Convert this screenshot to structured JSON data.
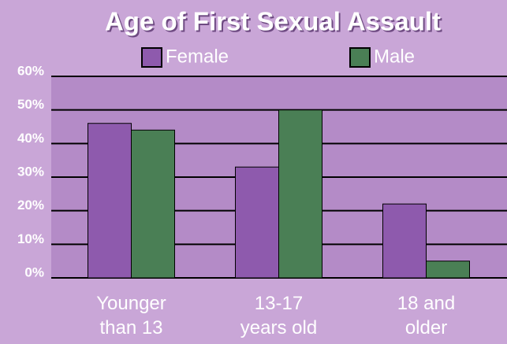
{
  "chart_data": {
    "type": "bar",
    "title": "Age of First Sexual Assault",
    "categories": [
      "Younger than 13",
      "13-17 years old",
      "18 and older"
    ],
    "series": [
      {
        "name": "Female",
        "color": "#8e5aad",
        "values": [
          46,
          33,
          22
        ]
      },
      {
        "name": "Male",
        "color": "#4a7f55",
        "values": [
          44,
          50,
          5
        ]
      }
    ],
    "ylim": [
      0,
      60
    ],
    "yticks": [
      {
        "value": 0,
        "label": "0%"
      },
      {
        "value": 10,
        "label": "10%"
      },
      {
        "value": 20,
        "label": "20%"
      },
      {
        "value": 30,
        "label": "30%"
      },
      {
        "value": 40,
        "label": "40%"
      },
      {
        "value": 50,
        "label": "50%"
      },
      {
        "value": 60,
        "label": "60%"
      }
    ],
    "grid": true
  }
}
